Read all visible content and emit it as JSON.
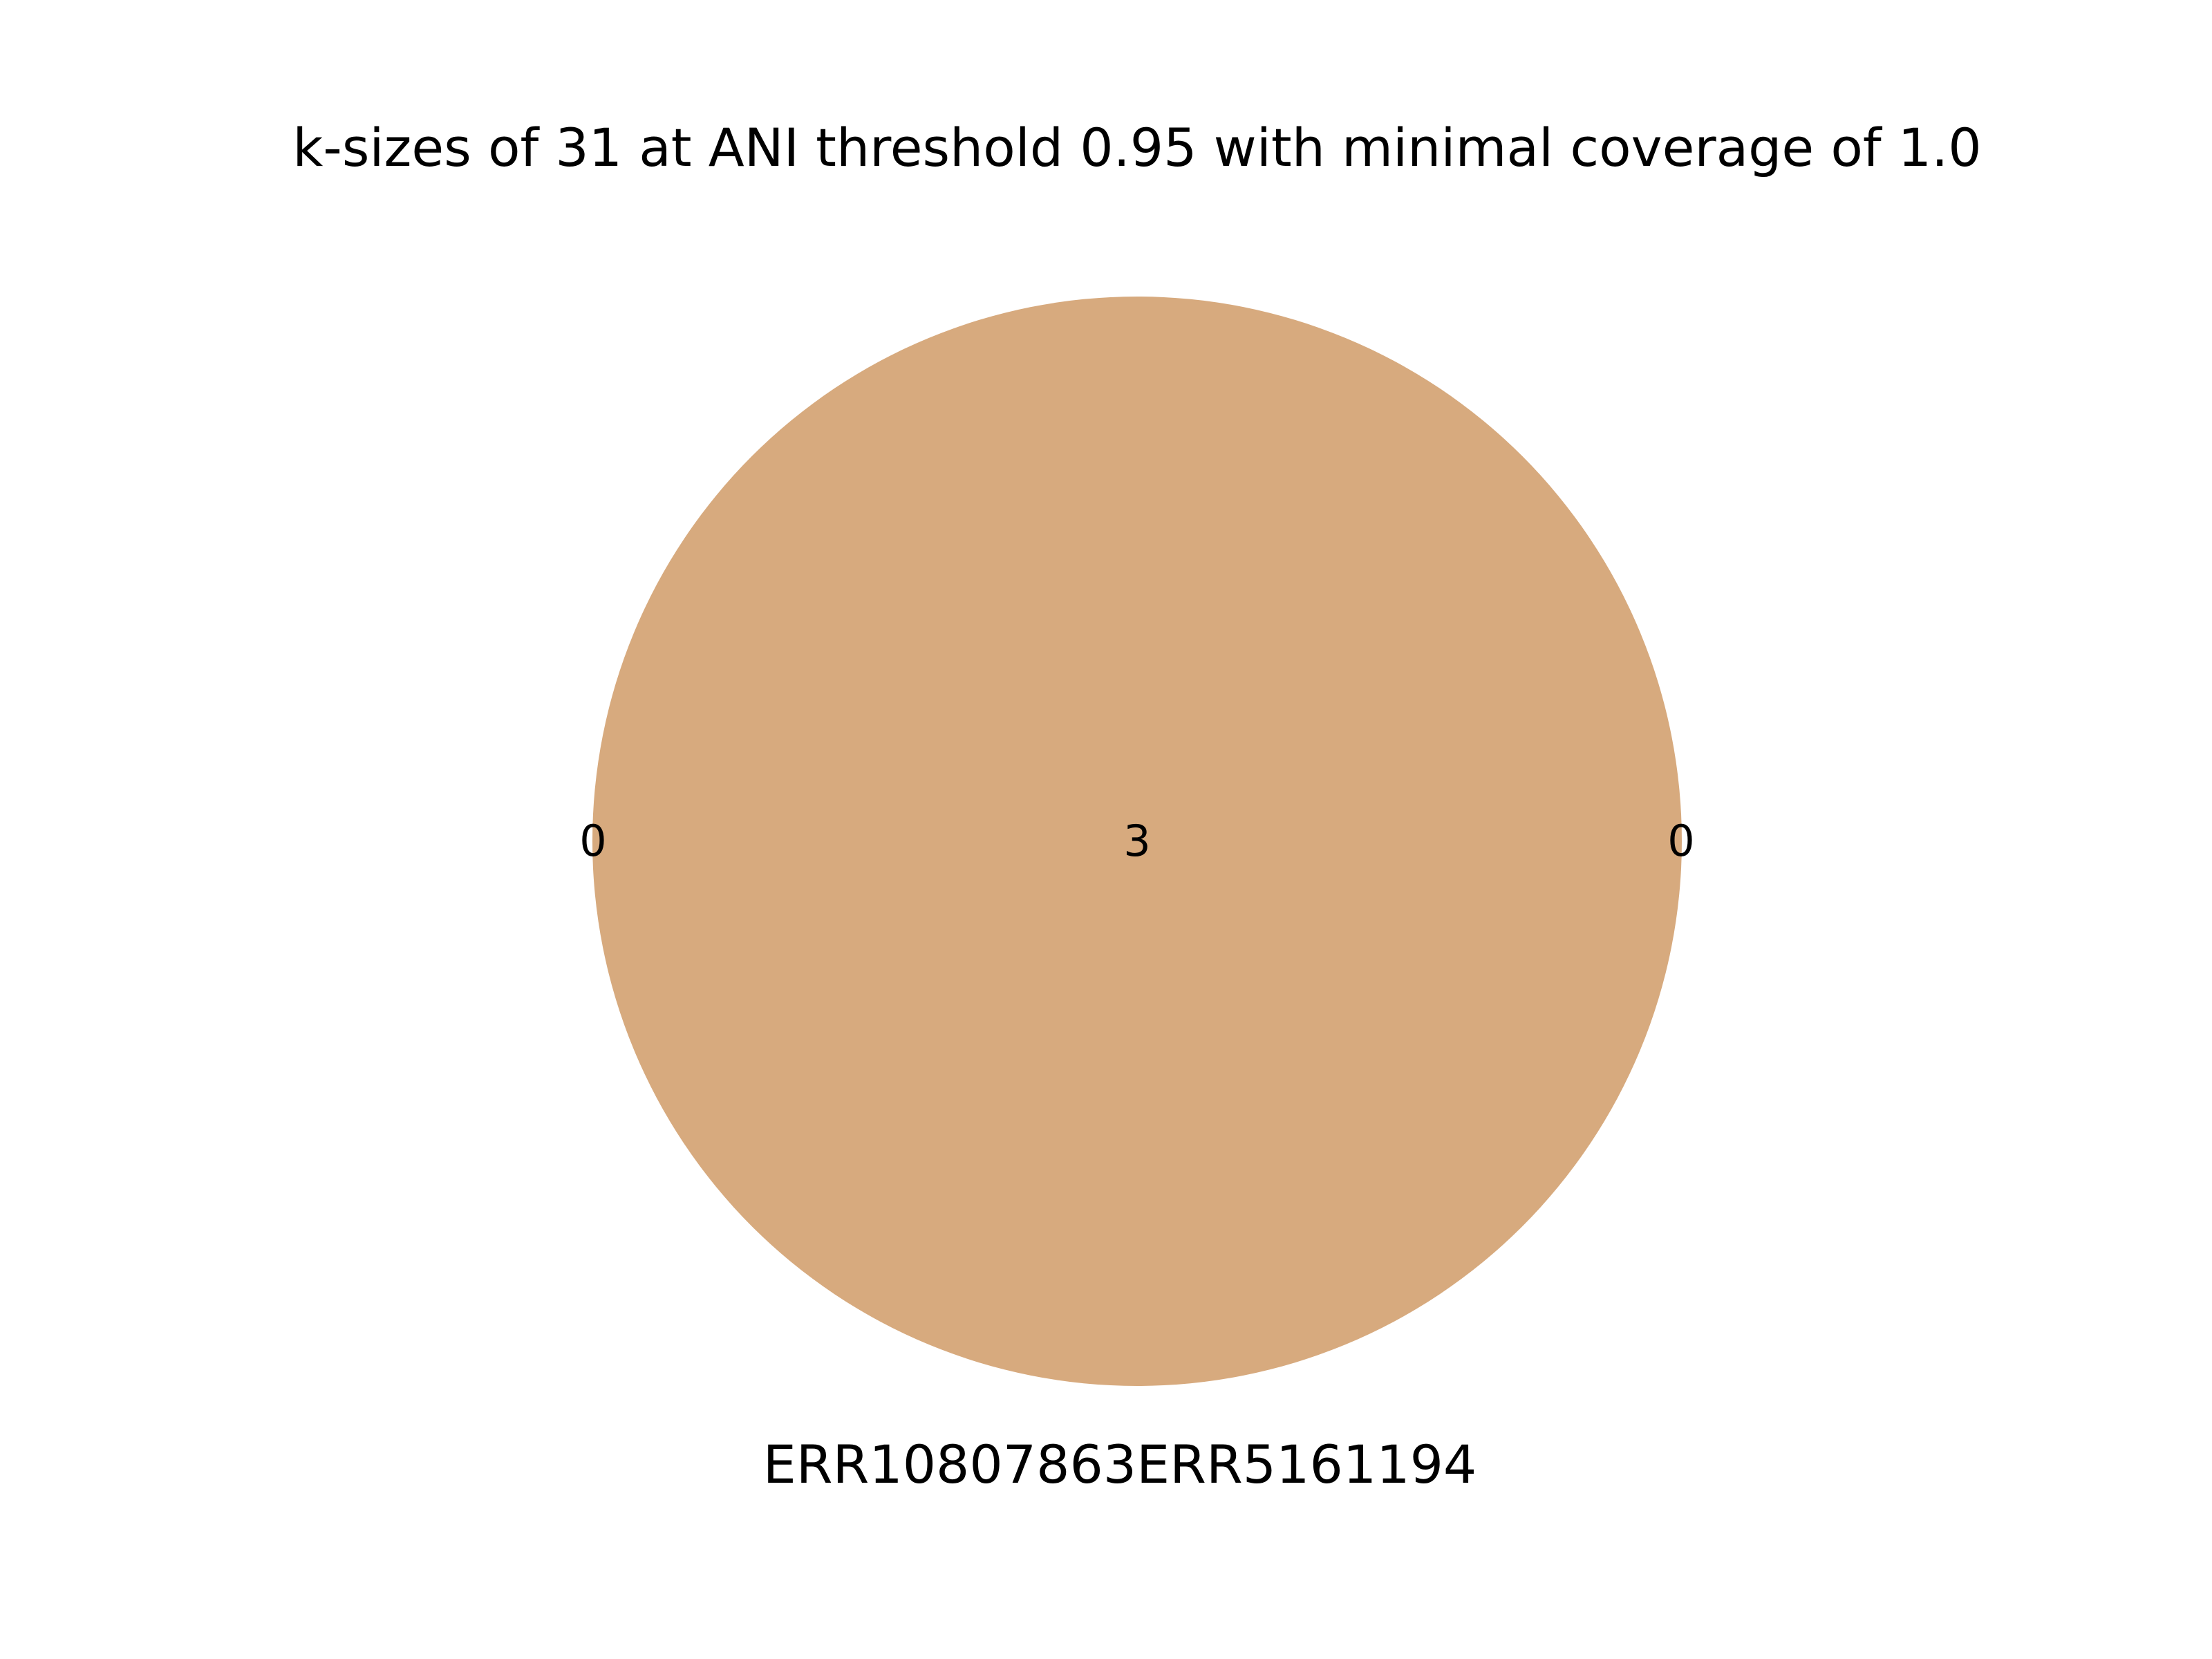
{
  "diagram": {
    "type": "venn",
    "title": "k-sizes of 31 at ANI threshold 0.95 with minimal coverage of 1.0",
    "set_label": "ERR10807863ERR5161194",
    "fill_color": "#d7aa7e",
    "regions": {
      "left_only": "0",
      "intersection": "3",
      "right_only": "0"
    }
  }
}
